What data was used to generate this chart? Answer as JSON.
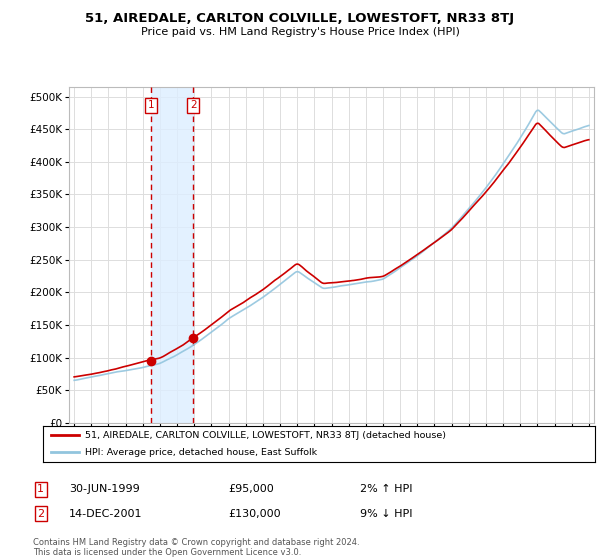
{
  "title": "51, AIREDALE, CARLTON COLVILLE, LOWESTOFT, NR33 8TJ",
  "subtitle": "Price paid vs. HM Land Registry's House Price Index (HPI)",
  "legend_line1": "51, AIREDALE, CARLTON COLVILLE, LOWESTOFT, NR33 8TJ (detached house)",
  "legend_line2": "HPI: Average price, detached house, East Suffolk",
  "transaction1_label": "1",
  "transaction1_date": "30-JUN-1999",
  "transaction1_price": "£95,000",
  "transaction1_hpi": "2% ↑ HPI",
  "transaction1_year": 1999.5,
  "transaction1_value": 95000,
  "transaction2_label": "2",
  "transaction2_date": "14-DEC-2001",
  "transaction2_price": "£130,000",
  "transaction2_hpi": "9% ↓ HPI",
  "transaction2_year": 2001.95,
  "transaction2_value": 130000,
  "hpi_color": "#92c5de",
  "price_color": "#cc0000",
  "marker_color": "#cc0000",
  "vline_color": "#cc0000",
  "shade_color": "#ddeeff",
  "ytick_labels": [
    "£0",
    "£50K",
    "£100K",
    "£150K",
    "£200K",
    "£250K",
    "£300K",
    "£350K",
    "£400K",
    "£450K",
    "£500K"
  ],
  "yticks": [
    0,
    50000,
    100000,
    150000,
    200000,
    250000,
    300000,
    350000,
    400000,
    450000,
    500000
  ],
  "ylim": [
    0,
    515000
  ],
  "xlim_start": 1994.7,
  "xlim_end": 2025.3,
  "xticks": [
    1995,
    1996,
    1997,
    1998,
    1999,
    2000,
    2001,
    2002,
    2003,
    2004,
    2005,
    2006,
    2007,
    2008,
    2009,
    2010,
    2011,
    2012,
    2013,
    2014,
    2015,
    2016,
    2017,
    2018,
    2019,
    2020,
    2021,
    2022,
    2023,
    2024,
    2025
  ],
  "footnote": "Contains HM Land Registry data © Crown copyright and database right 2024.\nThis data is licensed under the Open Government Licence v3.0.",
  "background_color": "#ffffff",
  "grid_color": "#dddddd"
}
